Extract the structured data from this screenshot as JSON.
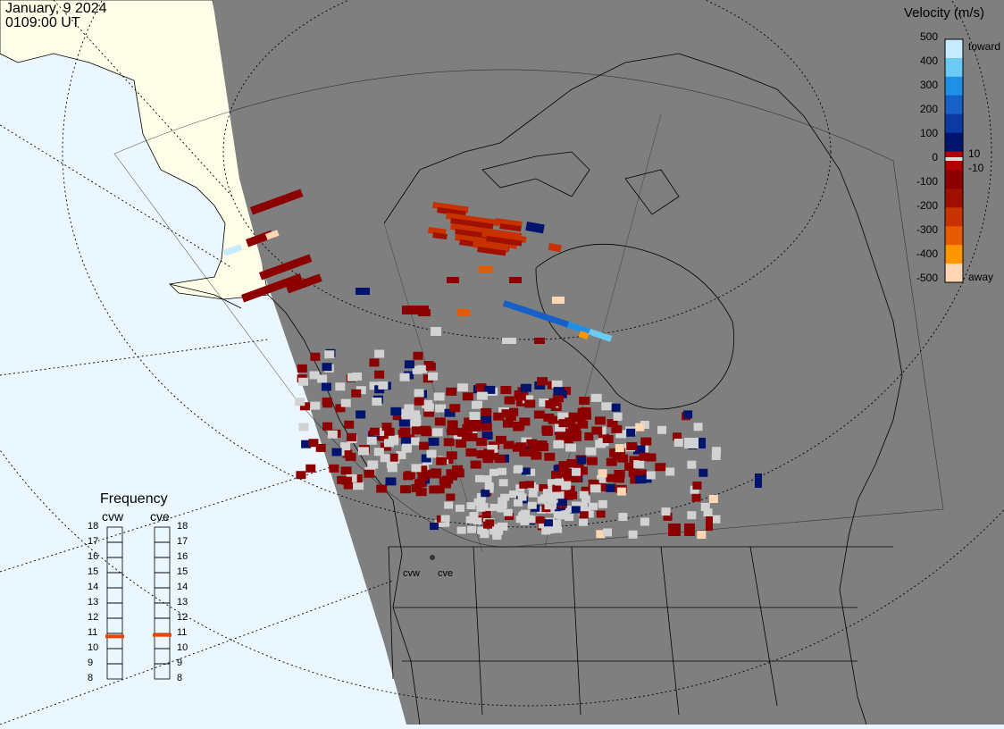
{
  "header": {
    "date": "January, 9 2024",
    "time": "0109:00 UT"
  },
  "colorbar": {
    "title": "Velocity (m/s)",
    "ticks": [
      "500",
      "400",
      "300",
      "200",
      "100",
      "0",
      "-100",
      "-200",
      "-300",
      "-400",
      "-500"
    ],
    "minor_pos": "10",
    "minor_neg": "-10",
    "toward_label": "toward",
    "away_label": "away",
    "colors": [
      "#c8ecff",
      "#6ccbf5",
      "#1e90e6",
      "#1660c8",
      "#0c3aa2",
      "#00146e",
      "#b40000",
      "#8c0000",
      "#a01000",
      "#c83200",
      "#e65a00",
      "#ff9600",
      "#ffd7b4"
    ]
  },
  "frequency": {
    "title": "Frequency",
    "radars": [
      "cvw",
      "cve"
    ],
    "scale": [
      "18",
      "17",
      "16",
      "15",
      "14",
      "13",
      "12",
      "11",
      "10",
      "9",
      "8"
    ],
    "values_mhz": [
      10.8,
      10.9
    ],
    "marker_color": "#e64600"
  },
  "sites": [
    "cvw",
    "cve"
  ],
  "colors": {
    "background": "#eaf7ff",
    "night_shade": "#7f7f7f",
    "land_day": "#fdfde8"
  }
}
